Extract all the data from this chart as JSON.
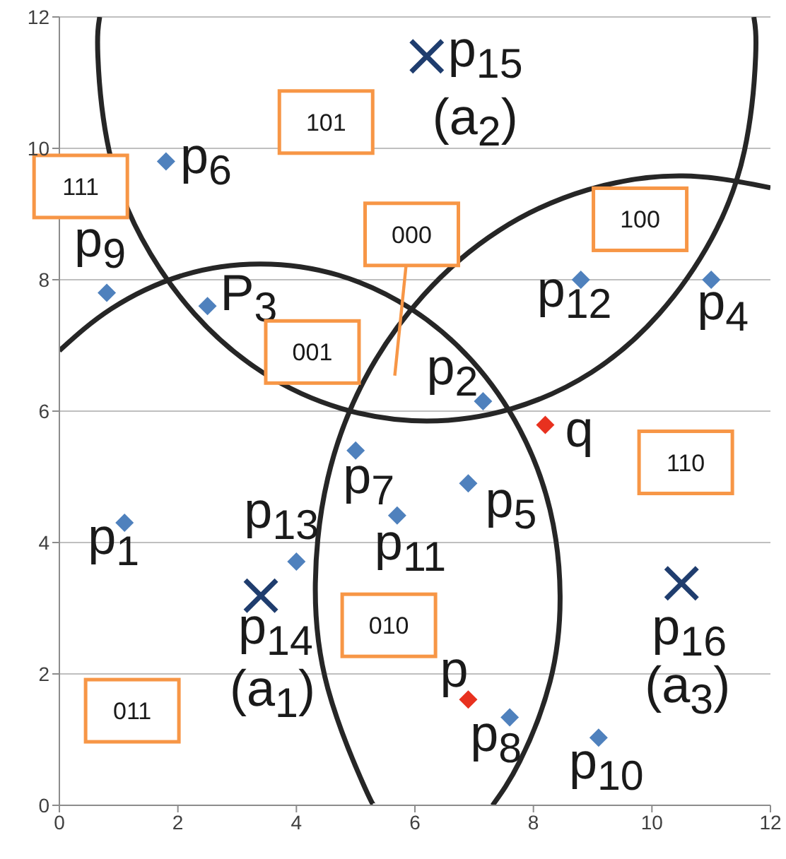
{
  "chart_data": {
    "type": "scatter",
    "xlim": [
      0,
      12
    ],
    "ylim": [
      0,
      12
    ],
    "xticks": [
      0,
      2,
      4,
      6,
      8,
      10,
      12
    ],
    "yticks": [
      0,
      2,
      4,
      6,
      8,
      10,
      12
    ],
    "grid": "y",
    "legend": false,
    "series": [
      {
        "type": "line",
        "marker": "none",
        "color": "#262626",
        "x": [
          0.68,
          0.65,
          0.84,
          1.39,
          2.28,
          3.43,
          4.76,
          6.2,
          7.64,
          8.98,
          10.12,
          11.01,
          11.56,
          11.75,
          11.72
        ],
        "values": [
          12.0,
          11.4,
          9.96,
          8.63,
          7.48,
          6.59,
          6.04,
          5.85,
          6.04,
          6.59,
          7.48,
          8.63,
          9.96,
          11.4,
          12.0
        ]
      },
      {
        "type": "line",
        "marker": "none",
        "color": "#262626",
        "x": [
          0,
          0.88,
          2.09,
          3.4,
          4.71,
          5.93,
          6.97,
          7.77,
          8.28,
          8.45,
          8.28,
          7.77,
          7.31
        ],
        "values": [
          6.92,
          7.56,
          8.07,
          8.24,
          8.07,
          7.56,
          6.76,
          5.72,
          4.5,
          3.19,
          1.88,
          0.67,
          0
        ]
      },
      {
        "type": "line",
        "marker": "none",
        "color": "#262626",
        "x": [
          12.0,
          10.52,
          8.92,
          7.42,
          6.14,
          5.15,
          4.53,
          4.32,
          4.53,
          5.15,
          5.32
        ],
        "values": [
          9.4,
          9.58,
          9.37,
          8.75,
          7.76,
          6.48,
          4.98,
          3.38,
          1.78,
          0.28,
          0
        ]
      },
      {
        "name": "p$_{1}$",
        "marker": "diamond",
        "color": "#4f81bd",
        "x": [
          1.1
        ],
        "values": [
          4.3
        ]
      },
      {
        "name": "p$_{2}$",
        "marker": "diamond",
        "color": "#4f81bd",
        "x": [
          7.15
        ],
        "values": [
          6.15
        ]
      },
      {
        "name": "P$_{3}$",
        "marker": "diamond",
        "color": "#4f81bd",
        "x": [
          2.5
        ],
        "values": [
          7.6
        ]
      },
      {
        "name": "p$_{4}$",
        "marker": "diamond",
        "color": "#4f81bd",
        "x": [
          11.0
        ],
        "values": [
          8.0
        ]
      },
      {
        "name": "p$_{5}$",
        "marker": "diamond",
        "color": "#4f81bd",
        "x": [
          6.9
        ],
        "values": [
          4.9
        ]
      },
      {
        "name": "p$_{6}$",
        "marker": "diamond",
        "color": "#4f81bd",
        "x": [
          1.8
        ],
        "values": [
          9.8
        ]
      },
      {
        "name": "p$_{7}$",
        "marker": "diamond",
        "color": "#4f81bd",
        "x": [
          5.0
        ],
        "values": [
          5.4
        ]
      },
      {
        "name": "p$_{8}$",
        "marker": "diamond",
        "color": "#4f81bd",
        "x": [
          7.6
        ],
        "values": [
          1.34
        ]
      },
      {
        "name": "p$_{9}$",
        "marker": "diamond",
        "color": "#4f81bd",
        "x": [
          0.8
        ],
        "values": [
          7.8
        ]
      },
      {
        "name": "p$_{10}$",
        "marker": "diamond",
        "color": "#4f81bd",
        "x": [
          9.1
        ],
        "values": [
          1.03
        ]
      },
      {
        "name": "p$_{11}$",
        "marker": "diamond",
        "color": "#4f81bd",
        "x": [
          5.7
        ],
        "values": [
          4.41
        ]
      },
      {
        "name": "p$_{12}$",
        "marker": "diamond",
        "color": "#4f81bd",
        "x": [
          8.8
        ],
        "values": [
          8.0
        ]
      },
      {
        "name": "p$_{13}$",
        "marker": "diamond",
        "color": "#4f81bd",
        "x": [
          4.0
        ],
        "values": [
          3.71
        ]
      },
      {
        "name": "p$_{14}$ (a$_{1}$)",
        "marker": "cross",
        "color": "#1f3d6e",
        "x": [
          3.4
        ],
        "values": [
          3.19
        ]
      },
      {
        "name": "p$_{15}$ (a$_{2}$)",
        "marker": "cross",
        "color": "#1f3d6e",
        "x": [
          6.2
        ],
        "values": [
          11.4
        ]
      },
      {
        "name": "p$_{16}$ (a$_{3}$)",
        "marker": "cross",
        "color": "#1f3d6e",
        "x": [
          10.5
        ],
        "values": [
          3.38
        ]
      },
      {
        "name": "p",
        "marker": "diamond",
        "color": "#e8311f",
        "x": [
          6.9
        ],
        "values": [
          1.61
        ]
      },
      {
        "name": "q",
        "marker": "diamond",
        "color": "#e8311f",
        "x": [
          8.2
        ],
        "values": [
          5.79
        ]
      }
    ],
    "annotations": [
      "101",
      "111",
      "000",
      "100",
      "001",
      "110",
      "010",
      "011"
    ]
  }
}
